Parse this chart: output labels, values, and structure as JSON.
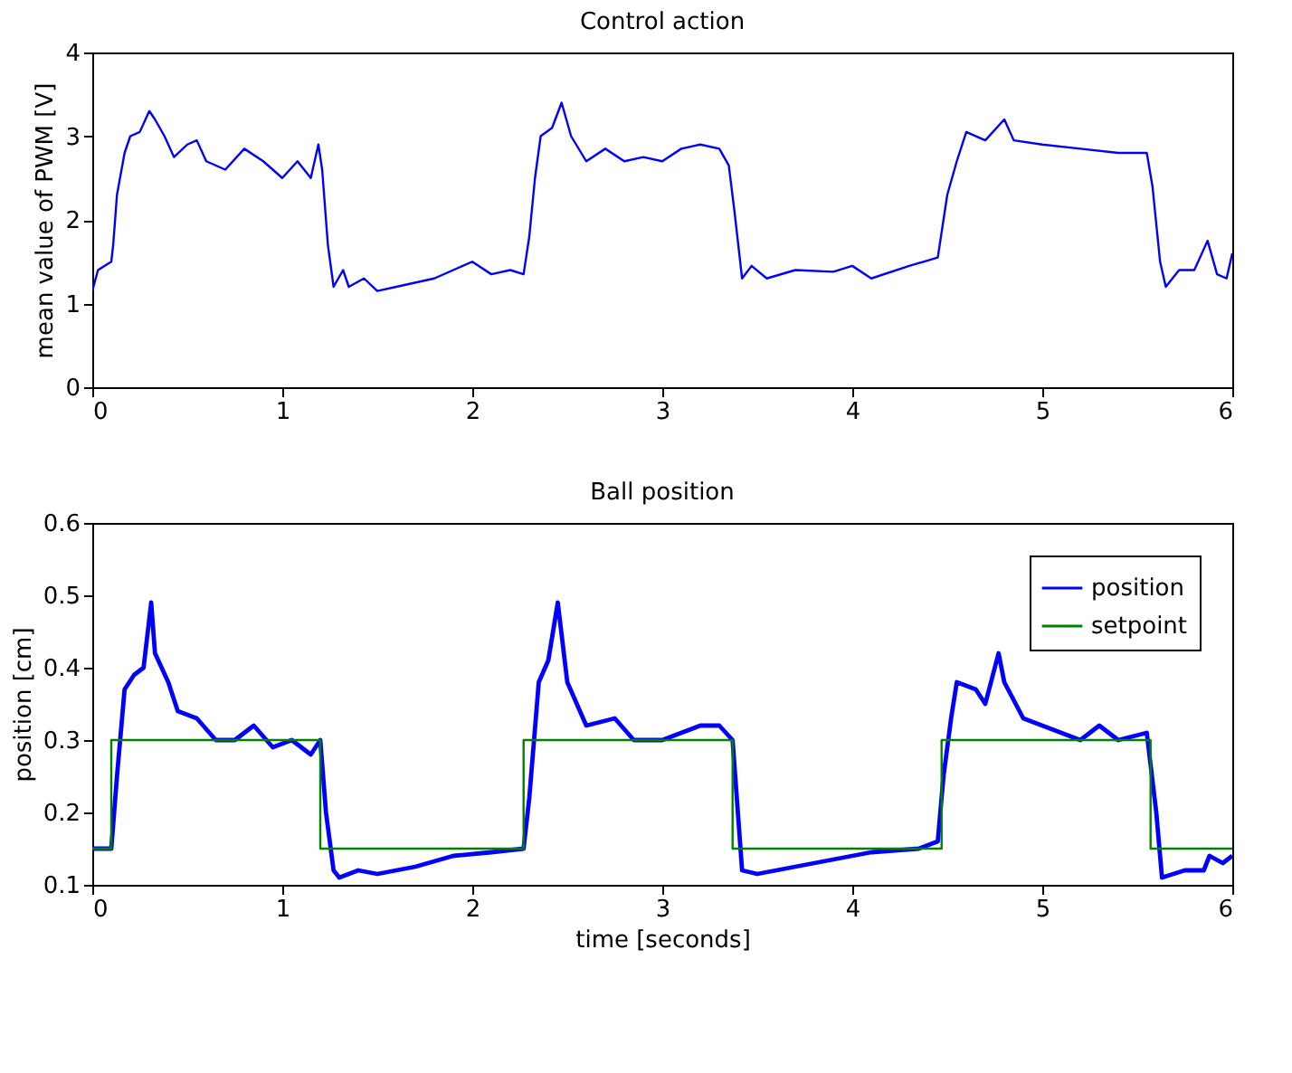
{
  "chart_data": [
    {
      "type": "line",
      "title": "Control action",
      "ylabel": "mean value of PWM [V]",
      "xlim": [
        0,
        6
      ],
      "ylim": [
        0,
        4
      ],
      "xticks": [
        0,
        1,
        2,
        3,
        4,
        5,
        6
      ],
      "yticks": [
        0,
        1,
        2,
        3,
        4
      ],
      "grid": false,
      "legend": false,
      "series": [
        {
          "color": "#0000ff",
          "x": [
            0,
            0.03,
            0.1,
            0.11,
            0.13,
            0.17,
            0.2,
            0.25,
            0.3,
            0.33,
            0.38,
            0.43,
            0.5,
            0.55,
            0.6,
            0.7,
            0.8,
            0.9,
            1.0,
            1.08,
            1.15,
            1.19,
            1.21,
            1.24,
            1.27,
            1.32,
            1.35,
            1.43,
            1.5,
            1.6,
            1.8,
            2.0,
            2.1,
            2.2,
            2.27,
            2.3,
            2.33,
            2.36,
            2.42,
            2.47,
            2.52,
            2.6,
            2.7,
            2.8,
            2.9,
            3.0,
            3.1,
            3.2,
            3.3,
            3.35,
            3.38,
            3.42,
            3.47,
            3.55,
            3.7,
            3.9,
            4.0,
            4.1,
            4.3,
            4.45,
            4.5,
            4.55,
            4.6,
            4.7,
            4.8,
            4.85,
            5.0,
            5.2,
            5.4,
            5.55,
            5.58,
            5.62,
            5.65,
            5.72,
            5.8,
            5.87,
            5.92,
            5.97,
            6.0
          ],
          "values": [
            1.15,
            1.4,
            1.5,
            1.7,
            2.3,
            2.8,
            3.0,
            3.05,
            3.3,
            3.2,
            3.0,
            2.75,
            2.9,
            2.95,
            2.7,
            2.6,
            2.85,
            2.7,
            2.5,
            2.7,
            2.5,
            2.9,
            2.6,
            1.7,
            1.2,
            1.4,
            1.2,
            1.3,
            1.15,
            1.2,
            1.3,
            1.5,
            1.35,
            1.4,
            1.35,
            1.8,
            2.5,
            3.0,
            3.1,
            3.4,
            3.0,
            2.7,
            2.85,
            2.7,
            2.75,
            2.7,
            2.85,
            2.9,
            2.85,
            2.65,
            2.1,
            1.3,
            1.45,
            1.3,
            1.4,
            1.38,
            1.45,
            1.3,
            1.45,
            1.55,
            2.3,
            2.7,
            3.05,
            2.95,
            3.2,
            2.95,
            2.9,
            2.85,
            2.8,
            2.8,
            2.4,
            1.5,
            1.2,
            1.4,
            1.4,
            1.75,
            1.35,
            1.3,
            1.6
          ]
        }
      ]
    },
    {
      "type": "line",
      "title": "Ball position",
      "xlabel": "time [seconds]",
      "ylabel": "position [cm]",
      "xlim": [
        0,
        6
      ],
      "ylim": [
        0.1,
        0.6
      ],
      "xticks": [
        0,
        1,
        2,
        3,
        4,
        5,
        6
      ],
      "yticks": [
        0.1,
        0.2,
        0.3,
        0.4,
        0.5,
        0.6
      ],
      "grid": false,
      "legend": "top right",
      "series": [
        {
          "name": "position",
          "color": "#0000ff",
          "x": [
            0,
            0.1,
            0.13,
            0.17,
            0.22,
            0.27,
            0.31,
            0.33,
            0.4,
            0.45,
            0.55,
            0.65,
            0.75,
            0.85,
            0.95,
            1.05,
            1.15,
            1.2,
            1.23,
            1.27,
            1.3,
            1.4,
            1.5,
            1.7,
            1.9,
            2.1,
            2.27,
            2.3,
            2.35,
            2.4,
            2.45,
            2.5,
            2.6,
            2.75,
            2.85,
            3.0,
            3.1,
            3.2,
            3.3,
            3.37,
            3.42,
            3.5,
            3.7,
            3.9,
            4.1,
            4.35,
            4.45,
            4.48,
            4.52,
            4.55,
            4.65,
            4.7,
            4.77,
            4.8,
            4.9,
            5.0,
            5.1,
            5.2,
            5.3,
            5.4,
            5.55,
            5.6,
            5.63,
            5.75,
            5.85,
            5.88,
            5.95,
            6.0
          ],
          "values": [
            0.15,
            0.15,
            0.25,
            0.37,
            0.39,
            0.4,
            0.49,
            0.42,
            0.38,
            0.34,
            0.33,
            0.3,
            0.3,
            0.32,
            0.29,
            0.3,
            0.28,
            0.3,
            0.2,
            0.12,
            0.11,
            0.12,
            0.115,
            0.125,
            0.14,
            0.145,
            0.15,
            0.22,
            0.38,
            0.41,
            0.49,
            0.38,
            0.32,
            0.33,
            0.3,
            0.3,
            0.31,
            0.32,
            0.32,
            0.3,
            0.12,
            0.115,
            0.125,
            0.135,
            0.145,
            0.15,
            0.16,
            0.25,
            0.33,
            0.38,
            0.37,
            0.35,
            0.42,
            0.38,
            0.33,
            0.32,
            0.31,
            0.3,
            0.32,
            0.3,
            0.31,
            0.2,
            0.11,
            0.12,
            0.12,
            0.14,
            0.13,
            0.14
          ]
        },
        {
          "name": "setpoint",
          "type": "step",
          "color": "#008000",
          "x": [
            0,
            0.1,
            1.2,
            2.27,
            3.37,
            4.47,
            5.57,
            6
          ],
          "values": [
            0.15,
            0.3,
            0.15,
            0.3,
            0.15,
            0.3,
            0.15,
            0.15
          ]
        }
      ]
    }
  ]
}
